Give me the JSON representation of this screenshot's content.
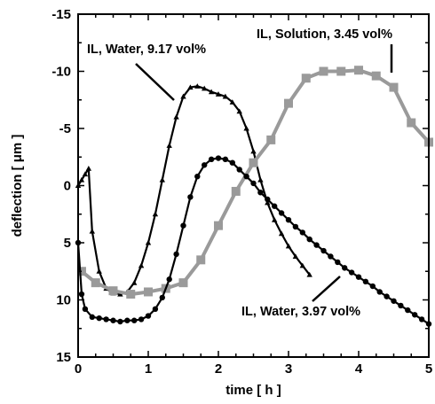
{
  "chart_data": {
    "type": "line",
    "xlabel": "time  [ h ]",
    "ylabel": "deflection  [ μm ]",
    "xlim": [
      0,
      5
    ],
    "ylim": [
      15,
      -15
    ],
    "y_axis_inverted": true,
    "xticks": [
      0,
      1,
      2,
      3,
      4,
      5
    ],
    "yticks": [
      -15,
      -10,
      -5,
      0,
      5,
      10,
      15
    ],
    "grid": false,
    "annotations": [
      "IL, Water, 9.17 vol%",
      "IL, Solution, 3.45 vol%",
      "IL, Water, 3.97 vol%"
    ],
    "series": [
      {
        "name": "IL, Water, 9.17 vol%",
        "color": "#000000",
        "marker": "triangle",
        "x": [
          0,
          0.05,
          0.1,
          0.15,
          0.2,
          0.3,
          0.4,
          0.5,
          0.6,
          0.7,
          0.8,
          0.9,
          1.0,
          1.1,
          1.2,
          1.3,
          1.4,
          1.5,
          1.6,
          1.7,
          1.8,
          1.9,
          2.0,
          2.1,
          2.2,
          2.3,
          2.4,
          2.5,
          2.6,
          2.7,
          2.8,
          2.9,
          3.0,
          3.1,
          3.2,
          3.3
        ],
        "y": [
          0,
          -0.5,
          -1.0,
          -1.5,
          4.0,
          7.5,
          9.0,
          9.4,
          9.5,
          9.3,
          8.5,
          7.0,
          5.0,
          2.5,
          -0.5,
          -3.5,
          -6.0,
          -7.8,
          -8.6,
          -8.7,
          -8.5,
          -8.2,
          -8.0,
          -7.8,
          -7.3,
          -6.5,
          -5.0,
          -3.0,
          -0.5,
          1.5,
          3.0,
          4.2,
          5.3,
          6.2,
          7.0,
          7.8
        ]
      },
      {
        "name": "IL, Solution, 3.45 vol%",
        "color": "#9a9a9a",
        "marker": "square",
        "x": [
          0.05,
          0.25,
          0.5,
          0.75,
          1.0,
          1.25,
          1.5,
          1.75,
          2.0,
          2.25,
          2.5,
          2.75,
          3.0,
          3.25,
          3.5,
          3.75,
          4.0,
          4.25,
          4.5,
          4.75,
          5.0
        ],
        "y": [
          7.5,
          8.5,
          9.2,
          9.5,
          9.3,
          9.0,
          8.5,
          6.5,
          3.5,
          0.5,
          -2.0,
          -4.0,
          -7.2,
          -9.4,
          -10.0,
          -10.0,
          -10.1,
          -9.6,
          -8.6,
          -5.5,
          -3.8
        ]
      },
      {
        "name": "IL, Water, 3.97 vol%",
        "color": "#000000",
        "marker": "circle",
        "x": [
          0,
          0.05,
          0.1,
          0.2,
          0.3,
          0.4,
          0.5,
          0.6,
          0.7,
          0.8,
          0.9,
          1.0,
          1.1,
          1.2,
          1.3,
          1.4,
          1.5,
          1.6,
          1.7,
          1.8,
          1.9,
          2.0,
          2.1,
          2.2,
          2.3,
          2.4,
          2.5,
          2.6,
          2.7,
          2.8,
          2.9,
          3.0,
          3.1,
          3.2,
          3.3,
          3.4,
          3.5,
          3.6,
          3.7,
          3.8,
          3.9,
          4.0,
          4.1,
          4.2,
          4.3,
          4.4,
          4.5,
          4.6,
          4.7,
          4.8,
          4.9,
          5.0
        ],
        "y": [
          5.0,
          9.5,
          10.8,
          11.5,
          11.6,
          11.7,
          11.8,
          11.9,
          11.8,
          11.8,
          11.7,
          11.4,
          10.8,
          9.8,
          8.2,
          6.0,
          3.5,
          1.0,
          -0.8,
          -1.8,
          -2.3,
          -2.4,
          -2.3,
          -2.0,
          -1.4,
          -0.8,
          -0.2,
          0.6,
          1.2,
          1.8,
          2.4,
          3.0,
          3.6,
          4.1,
          4.7,
          5.2,
          5.7,
          6.2,
          6.7,
          7.2,
          7.6,
          8.0,
          8.4,
          8.8,
          9.3,
          9.7,
          10.1,
          10.5,
          10.9,
          11.3,
          11.7,
          12.1
        ]
      }
    ]
  }
}
